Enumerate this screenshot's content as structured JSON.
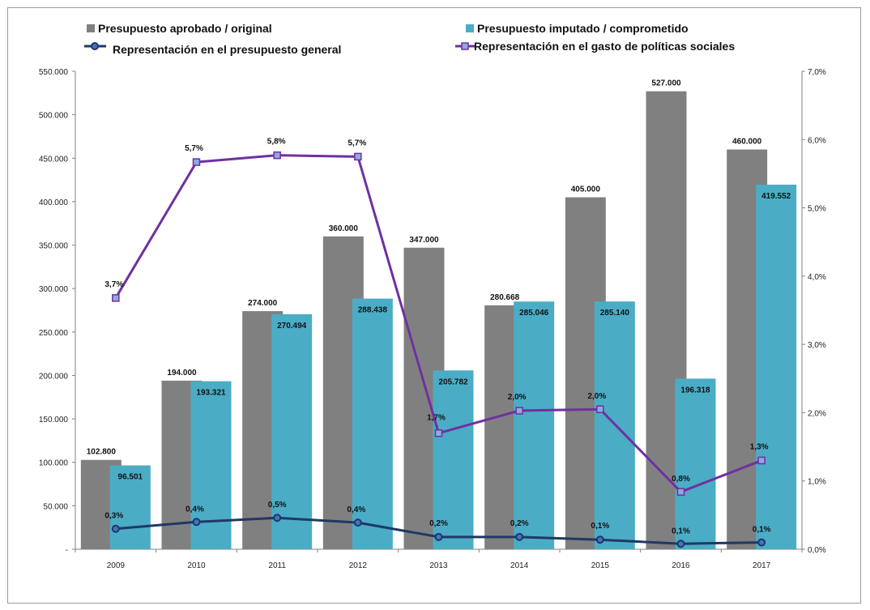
{
  "chart_data": {
    "type": "bar",
    "categories": [
      "2009",
      "2010",
      "2011",
      "2012",
      "2013",
      "2014",
      "2015",
      "2016",
      "2017"
    ],
    "series": [
      {
        "name": "Presupuesto aprobado / original",
        "kind": "bar",
        "axis": "left",
        "color": "#808080",
        "values": [
          102800,
          194000,
          274000,
          360000,
          347000,
          280668,
          405000,
          527000,
          460000
        ],
        "labels": [
          "102.800",
          "194.000",
          "274.000",
          "360.000",
          "347.000",
          "280.668",
          "405.000",
          "527.000",
          "460.000"
        ]
      },
      {
        "name": "Presupuesto imputado / comprometido",
        "kind": "bar",
        "axis": "left",
        "color": "#4bacc6",
        "values": [
          96501,
          193321,
          270494,
          288438,
          205782,
          285046,
          285140,
          196318,
          419552
        ],
        "labels": [
          "96.501",
          "193.321",
          "270.494",
          "288.438",
          "205.782",
          "285.046",
          "285.140",
          "196.318",
          "419.552"
        ]
      },
      {
        "name": "Representación en el presupuesto general",
        "kind": "line",
        "axis": "right",
        "color": "#1f3864",
        "values": [
          0.3,
          0.4,
          0.5,
          0.4,
          0.2,
          0.2,
          0.1,
          0.1,
          0.1
        ],
        "point_values": [
          0.3,
          0.4,
          0.46,
          0.39,
          0.18,
          0.18,
          0.14,
          0.08,
          0.1
        ],
        "labels": [
          "0,3%",
          "0,4%",
          "0,5%",
          "0,4%",
          "0,2%",
          "0,2%",
          "0,1%",
          "0,1%",
          "0,1%"
        ]
      },
      {
        "name": "Representación en el gasto de políticas sociales",
        "kind": "line",
        "axis": "right",
        "color": "#7030a0",
        "values": [
          3.7,
          5.7,
          5.8,
          5.7,
          1.7,
          2.0,
          2.0,
          0.8,
          1.3
        ],
        "point_values": [
          3.68,
          5.67,
          5.77,
          5.75,
          1.7,
          2.03,
          2.05,
          0.84,
          1.3
        ],
        "labels": [
          "3,7%",
          "5,7%",
          "5,8%",
          "5,7%",
          "1,7%",
          "2,0%",
          "2,0%",
          "0,8%",
          "1,3%"
        ]
      }
    ],
    "y_left": {
      "min": 0,
      "max": 550000,
      "step": 50000,
      "tick_labels": [
        "-",
        "50.000",
        "100.000",
        "150.000",
        "200.000",
        "250.000",
        "300.000",
        "350.000",
        "400.000",
        "450.000",
        "500.000",
        "550.000"
      ]
    },
    "y_right": {
      "min": 0,
      "max": 7.0,
      "step": 1.0,
      "tick_labels": [
        "0,0%",
        "1,0%",
        "2,0%",
        "3,0%",
        "4,0%",
        "5,0%",
        "6,0%",
        "7,0%"
      ]
    },
    "legend_position": "top",
    "grid": false
  }
}
